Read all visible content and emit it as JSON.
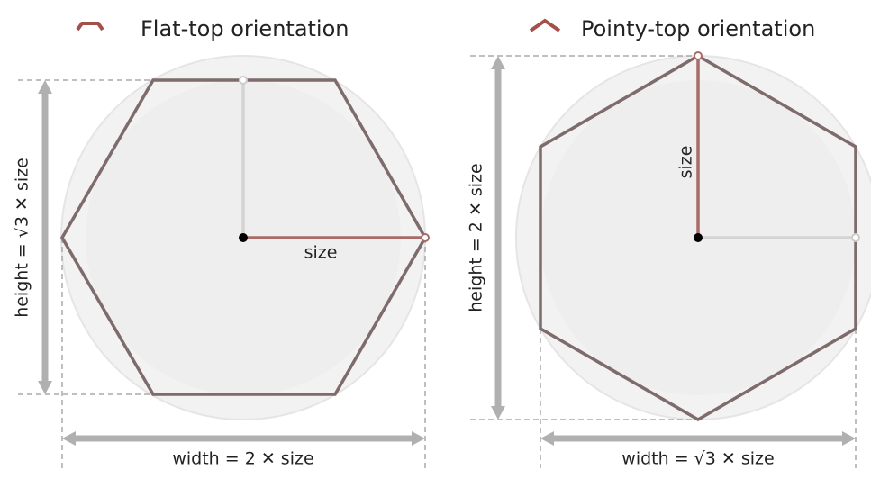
{
  "panels": [
    {
      "title": "Flat-top orientation",
      "size_label": "size",
      "height_label": "height = √3 ✕ size",
      "width_label": "width = 2 ✕ size"
    },
    {
      "title": "Pointy-top orientation",
      "size_label": "size",
      "height_label": "height = 2 ✕ size",
      "width_label": "width = √3 ✕ size"
    }
  ]
}
